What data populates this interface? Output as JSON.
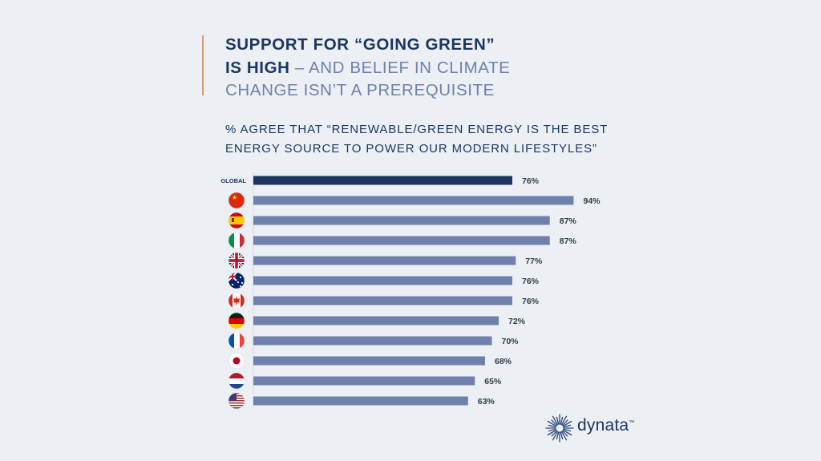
{
  "headline": {
    "line1": "SUPPORT FOR “GOING GREEN”",
    "line2_bold": "IS HIGH",
    "line2_rest": " – AND BELIEF IN CLIMATE",
    "line3": "CHANGE ISN’T A PREREQUISITE"
  },
  "subtitle": {
    "line1": "% AGREE THAT “RENEWABLE/GREEN ENERGY IS THE BEST",
    "line2": "ENERGY SOURCE TO POWER OUR MODERN LIFESTYLES”"
  },
  "colors": {
    "global_bar": "#1b3660",
    "country_bar": "#6f80ab",
    "accent": "#e0946c",
    "text_dark": "#1b3660"
  },
  "chart_data": {
    "type": "bar",
    "orientation": "horizontal",
    "categories": [
      "GLOBAL",
      "china-flag",
      "spain-flag",
      "italy-flag",
      "uk-flag",
      "australia-flag",
      "canada-flag",
      "germany-flag",
      "france-flag",
      "japan-flag",
      "netherlands-flag",
      "usa-flag"
    ],
    "values": [
      76,
      94,
      87,
      87,
      77,
      76,
      76,
      72,
      70,
      68,
      65,
      63
    ],
    "value_labels": [
      "76%",
      "94%",
      "87%",
      "87%",
      "77%",
      "76%",
      "76%",
      "72%",
      "70%",
      "68%",
      "65%",
      "63%"
    ],
    "unit": "%",
    "xlim": [
      0,
      100
    ],
    "grid": false
  },
  "brand": {
    "name": "dynata",
    "trademark": "™"
  }
}
